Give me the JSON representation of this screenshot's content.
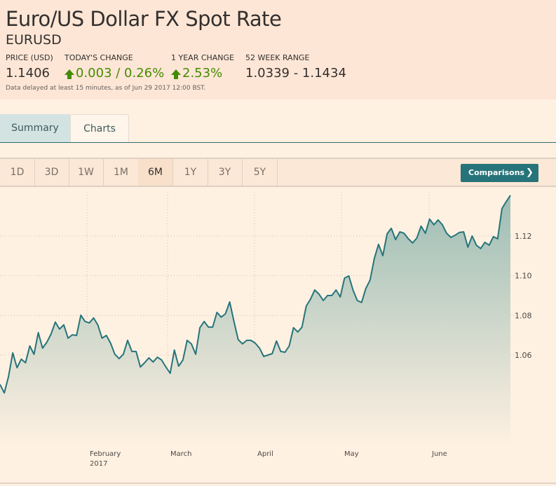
{
  "header": {
    "title": "Euro/US Dollar FX Spot Rate",
    "symbol": "EURUSD",
    "price_label": "PRICE (USD)",
    "price": "1.1406",
    "today_change_label": "TODAY'S CHANGE",
    "today_change": "0.003 / 0.26%",
    "year_change_label": "1 YEAR CHANGE",
    "year_change": "2.53%",
    "range_label": "52 WEEK RANGE",
    "range": "1.0339 - 1.1434",
    "delay_note": "Data delayed at least 15 minutes, as of Jun 29 2017 12:00 BST.",
    "up_color": "#458b00"
  },
  "tabs": [
    {
      "label": "Summary"
    },
    {
      "label": "Charts"
    }
  ],
  "ranges": [
    {
      "label": "1D"
    },
    {
      "label": "3D"
    },
    {
      "label": "1W"
    },
    {
      "label": "1M"
    },
    {
      "label": "6M"
    },
    {
      "label": "1Y"
    },
    {
      "label": "3Y"
    },
    {
      "label": "5Y"
    }
  ],
  "active_range": "6M",
  "comparisons_label": "Comparisons",
  "chart_data": {
    "type": "area",
    "line_color": "#26747a",
    "y_ticks": [
      "1.06",
      "1.08",
      "1.10",
      "1.12"
    ],
    "y_tick_values": [
      1.06,
      1.08,
      1.1,
      1.12
    ],
    "x_labels": [
      {
        "label": "February",
        "sub": "2017"
      },
      {
        "label": "March",
        "sub": ""
      },
      {
        "label": "April",
        "sub": ""
      },
      {
        "label": "May",
        "sub": ""
      },
      {
        "label": "June",
        "sub": ""
      }
    ],
    "values": [
      1.0452,
      1.0409,
      1.0491,
      1.0611,
      1.0536,
      1.0579,
      1.0561,
      1.0646,
      1.0604,
      1.0713,
      1.0635,
      1.0664,
      1.0706,
      1.0766,
      1.0731,
      1.0752,
      1.0685,
      1.0702,
      1.0699,
      1.0801,
      1.0769,
      1.0762,
      1.0787,
      1.0752,
      1.0685,
      1.0699,
      1.066,
      1.0604,
      1.0582,
      1.0604,
      1.0674,
      1.0618,
      1.0618,
      1.054,
      1.0561,
      1.0586,
      1.0565,
      1.0589,
      1.0575,
      1.054,
      1.0508,
      1.0625,
      1.0544,
      1.0575,
      1.0674,
      1.0656,
      1.0604,
      1.0738,
      1.0769,
      1.0741,
      1.0741,
      1.0815,
      1.0791,
      1.0808,
      1.0868,
      1.0769,
      1.0678,
      1.0656,
      1.0674,
      1.0674,
      1.066,
      1.0635,
      1.0593,
      1.06,
      1.0607,
      1.0671,
      1.0618,
      1.0614,
      1.0646,
      1.0738,
      1.0716,
      1.0741,
      1.0847,
      1.0882,
      1.0928,
      1.0907,
      1.0875,
      1.09,
      1.09,
      1.0928,
      1.0893,
      1.0988,
      1.0999,
      1.0928,
      1.0875,
      1.0865,
      1.0935,
      1.0978,
      1.1087,
      1.1158,
      1.1101,
      1.1211,
      1.1239,
      1.1182,
      1.1221,
      1.1214,
      1.1186,
      1.1165,
      1.119,
      1.125,
      1.1214,
      1.1285,
      1.1257,
      1.1281,
      1.1257,
      1.1214,
      1.1193,
      1.1204,
      1.1218,
      1.1221,
      1.1144,
      1.12,
      1.1154,
      1.1137,
      1.1168,
      1.1154,
      1.1197,
      1.1186,
      1.1338,
      1.1373,
      1.1405
    ]
  }
}
